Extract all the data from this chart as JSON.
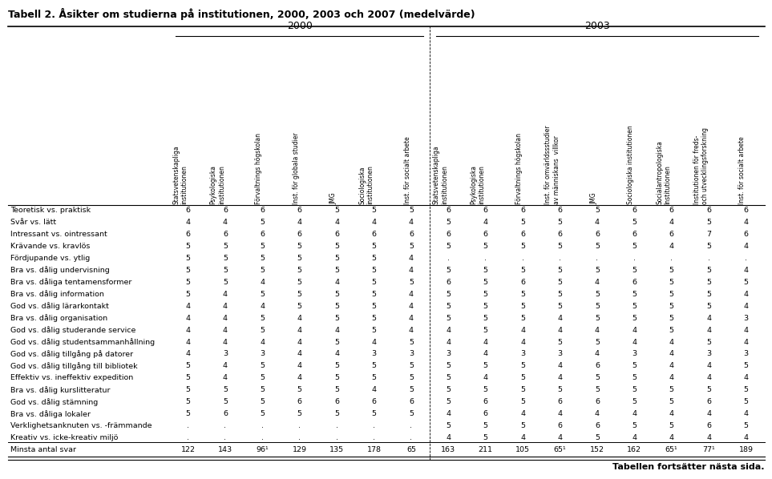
{
  "title": "Tabell 2. Åsikter om studierna på institutionen, 2000, 2003 och 2007 (medelvärde)",
  "col_headers": [
    "Statsvetenskapliga\ninstitutionen",
    "Psykologiska\ninstitutionen",
    "Förvaltnings högskolan",
    "Inst. för globala studier",
    "JMG",
    "Sociologiska\ninstitutionen",
    "Inst. för socialt arbete",
    "Statsvetenskapliga\ninstitutionen",
    "Psykologiska\ninstitutionen",
    "Förvaltnings högskolan",
    "Inst. för omvärldssstudier\nav människans  villkor",
    "JMG",
    "Sociologiska institutionen",
    "Socialantropologiska\nInstitutionen",
    "Institutionen för freds-\noch utvecklingsforskning",
    "Inst. för socialt arbete"
  ],
  "row_labels": [
    "Teoretisk vs. praktisk",
    "Svår vs. lätt",
    "Intressant vs. ointressant",
    "Krävande vs. kravlös",
    "Fördjupande vs. ytlig",
    "Bra vs. dålig undervisning",
    "Bra vs. dåliga tentamensformer",
    "Bra vs. dålig information",
    "God vs. dålig lärarkontakt",
    "Bra vs. dålig organisation",
    "God vs. dålig studerande service",
    "God vs. dålig studentsammanhållning",
    "God vs. dålig tillgång på datorer",
    "God vs. dålig tillgång till bibliotek",
    "Effektiv vs. ineffektiv expedition",
    "Bra vs. dålig kurslitteratur",
    "God vs. dålig stämning",
    "Bra vs. dåliga lokaler",
    "Verklighetsanknuten vs. -främmande",
    "Kreativ vs. icke-kreativ miljö",
    "Minsta antal svar"
  ],
  "data": [
    [
      "6",
      "6",
      "6",
      "6",
      "5",
      "5",
      "5",
      "6",
      "6",
      "6",
      "6",
      "5",
      "6",
      "6",
      "6",
      "6"
    ],
    [
      "4",
      "4",
      "5",
      "4",
      "4",
      "4",
      "4",
      "5",
      "4",
      "5",
      "5",
      "4",
      "5",
      "4",
      "5",
      "4"
    ],
    [
      "6",
      "6",
      "6",
      "6",
      "6",
      "6",
      "6",
      "6",
      "6",
      "6",
      "6",
      "6",
      "6",
      "6",
      "7",
      "6"
    ],
    [
      "5",
      "5",
      "5",
      "5",
      "5",
      "5",
      "5",
      "5",
      "5",
      "5",
      "5",
      "5",
      "5",
      "4",
      "5",
      "4"
    ],
    [
      "5",
      "5",
      "5",
      "5",
      "5",
      "5",
      "4",
      ".",
      ".",
      ".",
      ".",
      ".",
      ".",
      ".",
      ".",
      "."
    ],
    [
      "5",
      "5",
      "5",
      "5",
      "5",
      "5",
      "4",
      "5",
      "5",
      "5",
      "5",
      "5",
      "5",
      "5",
      "5",
      "4"
    ],
    [
      "5",
      "5",
      "4",
      "5",
      "4",
      "5",
      "5",
      "6",
      "5",
      "6",
      "5",
      "4",
      "6",
      "5",
      "5",
      "5"
    ],
    [
      "5",
      "4",
      "5",
      "5",
      "5",
      "5",
      "4",
      "5",
      "5",
      "5",
      "5",
      "5",
      "5",
      "5",
      "5",
      "4"
    ],
    [
      "4",
      "4",
      "4",
      "5",
      "5",
      "5",
      "4",
      "5",
      "5",
      "5",
      "5",
      "5",
      "5",
      "5",
      "5",
      "4"
    ],
    [
      "4",
      "4",
      "5",
      "4",
      "5",
      "5",
      "4",
      "5",
      "5",
      "5",
      "4",
      "5",
      "5",
      "5",
      "4",
      "3"
    ],
    [
      "4",
      "4",
      "5",
      "4",
      "4",
      "5",
      "4",
      "4",
      "5",
      "4",
      "4",
      "4",
      "4",
      "5",
      "4",
      "4"
    ],
    [
      "4",
      "4",
      "4",
      "4",
      "5",
      "4",
      "5",
      "4",
      "4",
      "4",
      "5",
      "5",
      "4",
      "4",
      "5",
      "4"
    ],
    [
      "4",
      "3",
      "3",
      "4",
      "4",
      "3",
      "3",
      "3",
      "4",
      "3",
      "3",
      "4",
      "3",
      "4",
      "3",
      "3"
    ],
    [
      "5",
      "4",
      "5",
      "4",
      "5",
      "5",
      "5",
      "5",
      "5",
      "5",
      "4",
      "6",
      "5",
      "4",
      "4",
      "5"
    ],
    [
      "5",
      "4",
      "5",
      "4",
      "5",
      "5",
      "5",
      "5",
      "4",
      "5",
      "4",
      "5",
      "5",
      "4",
      "4",
      "4"
    ],
    [
      "5",
      "5",
      "5",
      "5",
      "5",
      "4",
      "5",
      "5",
      "5",
      "5",
      "5",
      "5",
      "5",
      "5",
      "5",
      "5"
    ],
    [
      "5",
      "5",
      "5",
      "6",
      "6",
      "6",
      "6",
      "5",
      "6",
      "5",
      "6",
      "6",
      "5",
      "5",
      "6",
      "5"
    ],
    [
      "5",
      "6",
      "5",
      "5",
      "5",
      "5",
      "5",
      "4",
      "6",
      "4",
      "4",
      "4",
      "4",
      "4",
      "4",
      "4"
    ],
    [
      ".",
      ".",
      ".",
      ".",
      ".",
      ".",
      ".",
      "5",
      "5",
      "5",
      "6",
      "6",
      "5",
      "5",
      "6",
      "5"
    ],
    [
      ".",
      ".",
      ".",
      ".",
      ".",
      ".",
      ".",
      "4",
      "5",
      "4",
      "4",
      "5",
      "4",
      "4",
      "4",
      "4"
    ],
    [
      "122",
      "143",
      "96¹",
      "129",
      "135",
      "178",
      "65",
      "163",
      "211",
      "105",
      "65¹",
      "152",
      "162",
      "65¹",
      "77¹",
      "189"
    ]
  ],
  "footer": "Tabellen fortsätter nästa sida.",
  "n_2000_cols": 7,
  "n_2003_cols": 9
}
